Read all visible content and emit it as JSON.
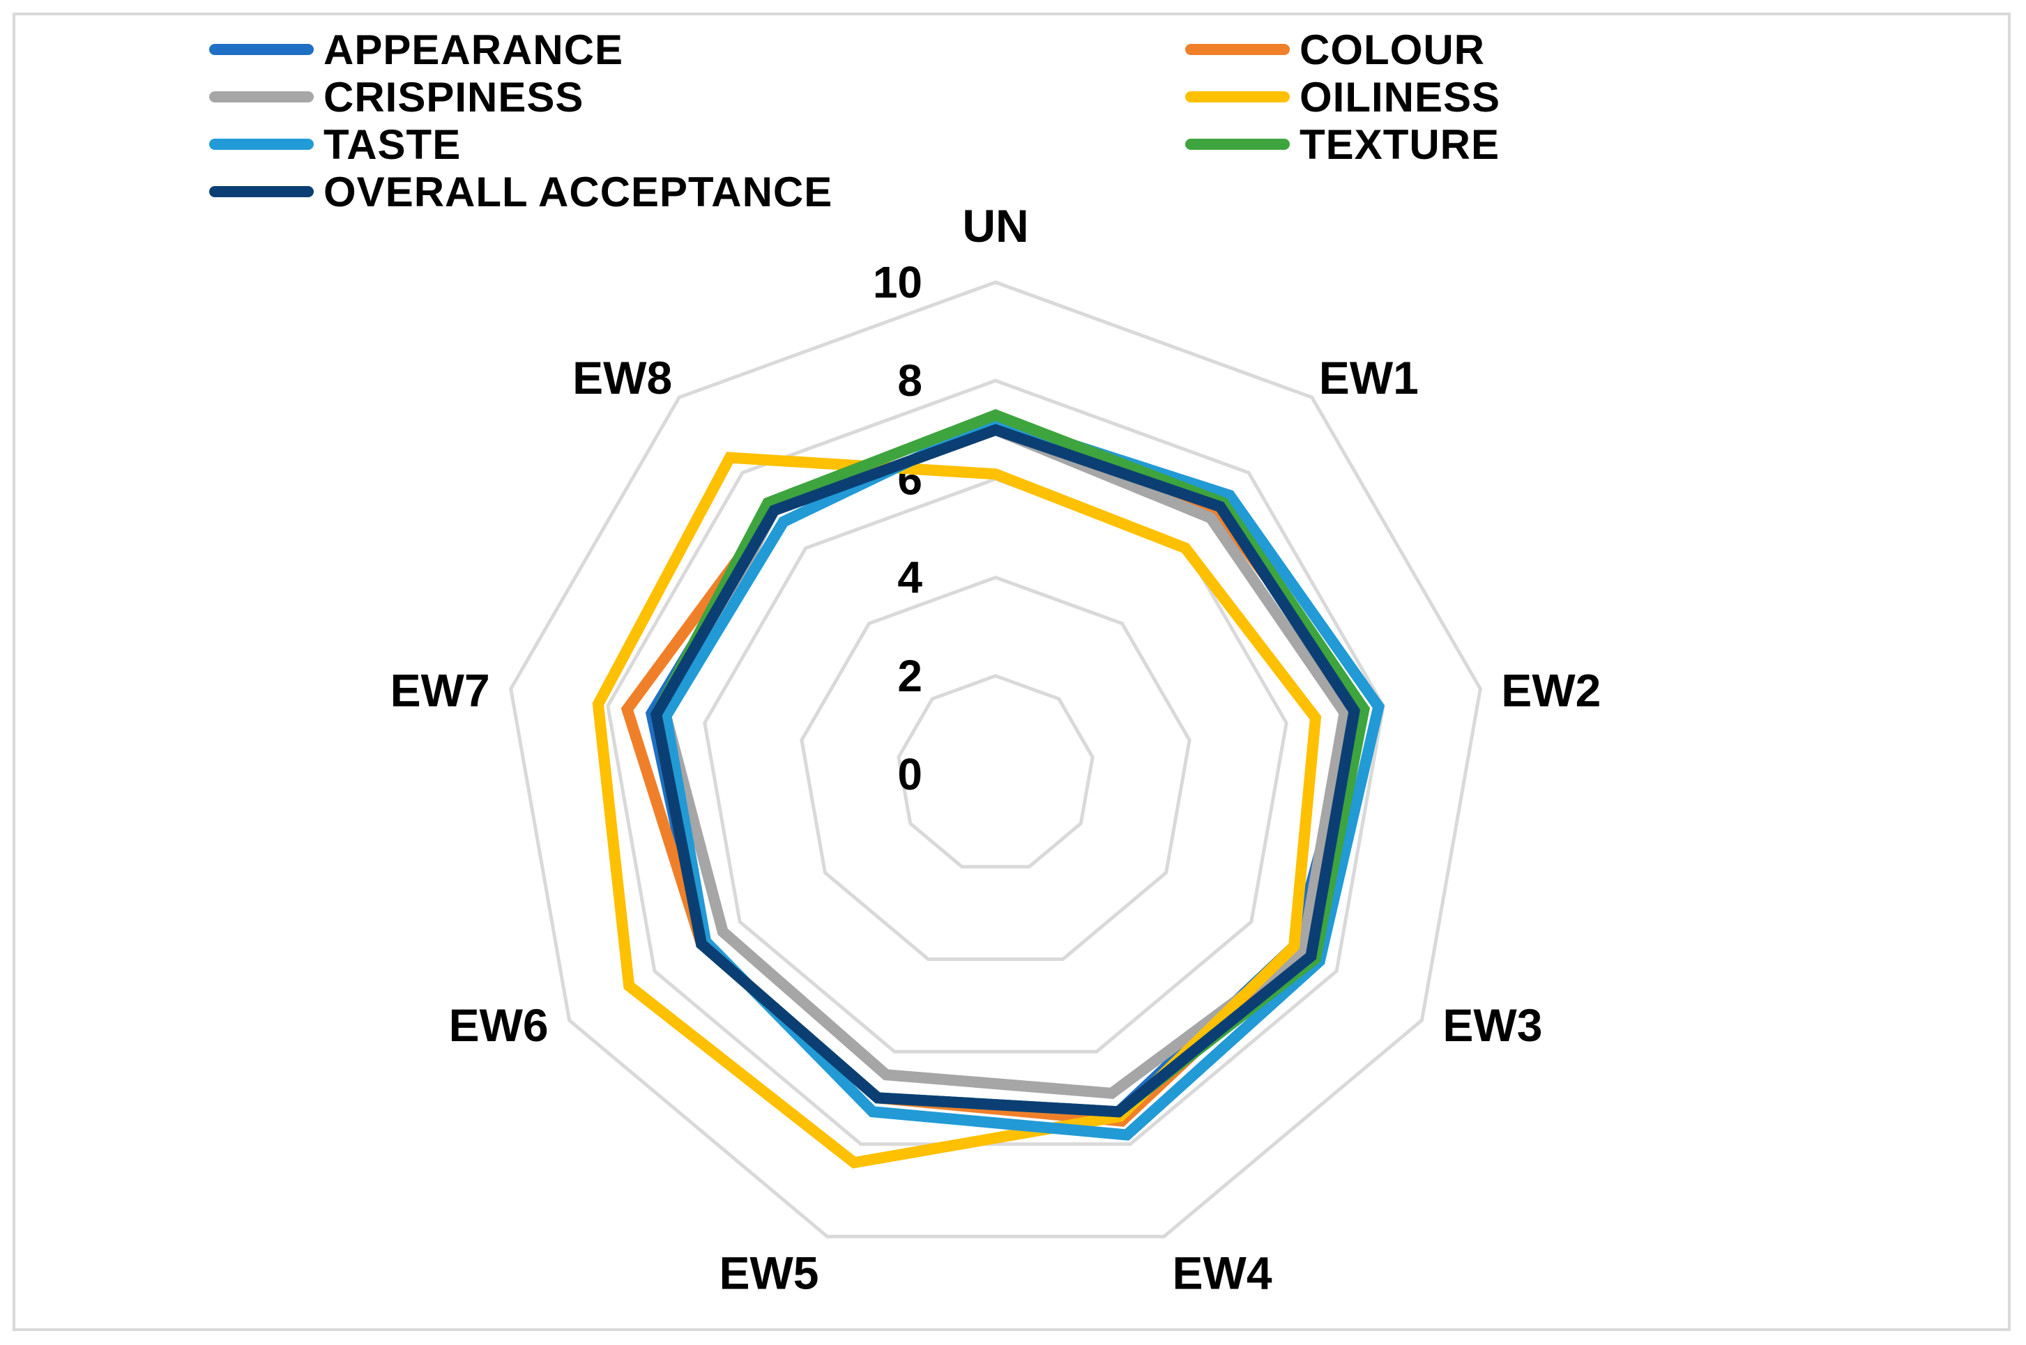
{
  "chart_data": {
    "type": "radar",
    "axes": [
      "UN",
      "EW1",
      "EW2",
      "EW3",
      "EW4",
      "EW5",
      "EW6",
      "EW7",
      "EW8"
    ],
    "rlim": [
      0,
      10
    ],
    "ticks": [
      "0",
      "2",
      "4",
      "6",
      "8",
      "10"
    ],
    "grid": true,
    "legend_position": "top",
    "series": [
      {
        "name": "APPEARANCE",
        "color": "#1f6fc4",
        "values": [
          7.0,
          7.2,
          7.5,
          7.0,
          7.3,
          7.0,
          6.9,
          7.1,
          7.0
        ]
      },
      {
        "name": "COLOUR",
        "color": "#f07f2a",
        "values": [
          7.0,
          7.0,
          7.6,
          7.2,
          7.5,
          7.0,
          6.9,
          7.6,
          7.0
        ]
      },
      {
        "name": "CRISPINESS",
        "color": "#a6a6a6",
        "values": [
          7.0,
          6.8,
          7.2,
          7.2,
          6.9,
          6.5,
          6.4,
          6.8,
          7.0
        ]
      },
      {
        "name": "OILINESS",
        "color": "#ffc000",
        "values": [
          6.1,
          6.0,
          6.6,
          7.0,
          7.4,
          8.4,
          8.6,
          8.2,
          8.4
        ]
      },
      {
        "name": "TASTE",
        "color": "#229ad6",
        "values": [
          7.2,
          7.4,
          7.9,
          7.6,
          7.8,
          7.3,
          6.8,
          6.8,
          6.7
        ]
      },
      {
        "name": "TEXTURE",
        "color": "#3ea43e",
        "values": [
          7.3,
          7.2,
          7.6,
          7.5,
          7.3,
          7.0,
          6.9,
          7.0,
          7.2
        ]
      },
      {
        "name": "OVERALL ACCEPTANCE",
        "color": "#0b3f74",
        "values": [
          7.0,
          7.1,
          7.4,
          7.4,
          7.3,
          7.0,
          6.9,
          7.0,
          7.0
        ]
      }
    ]
  }
}
